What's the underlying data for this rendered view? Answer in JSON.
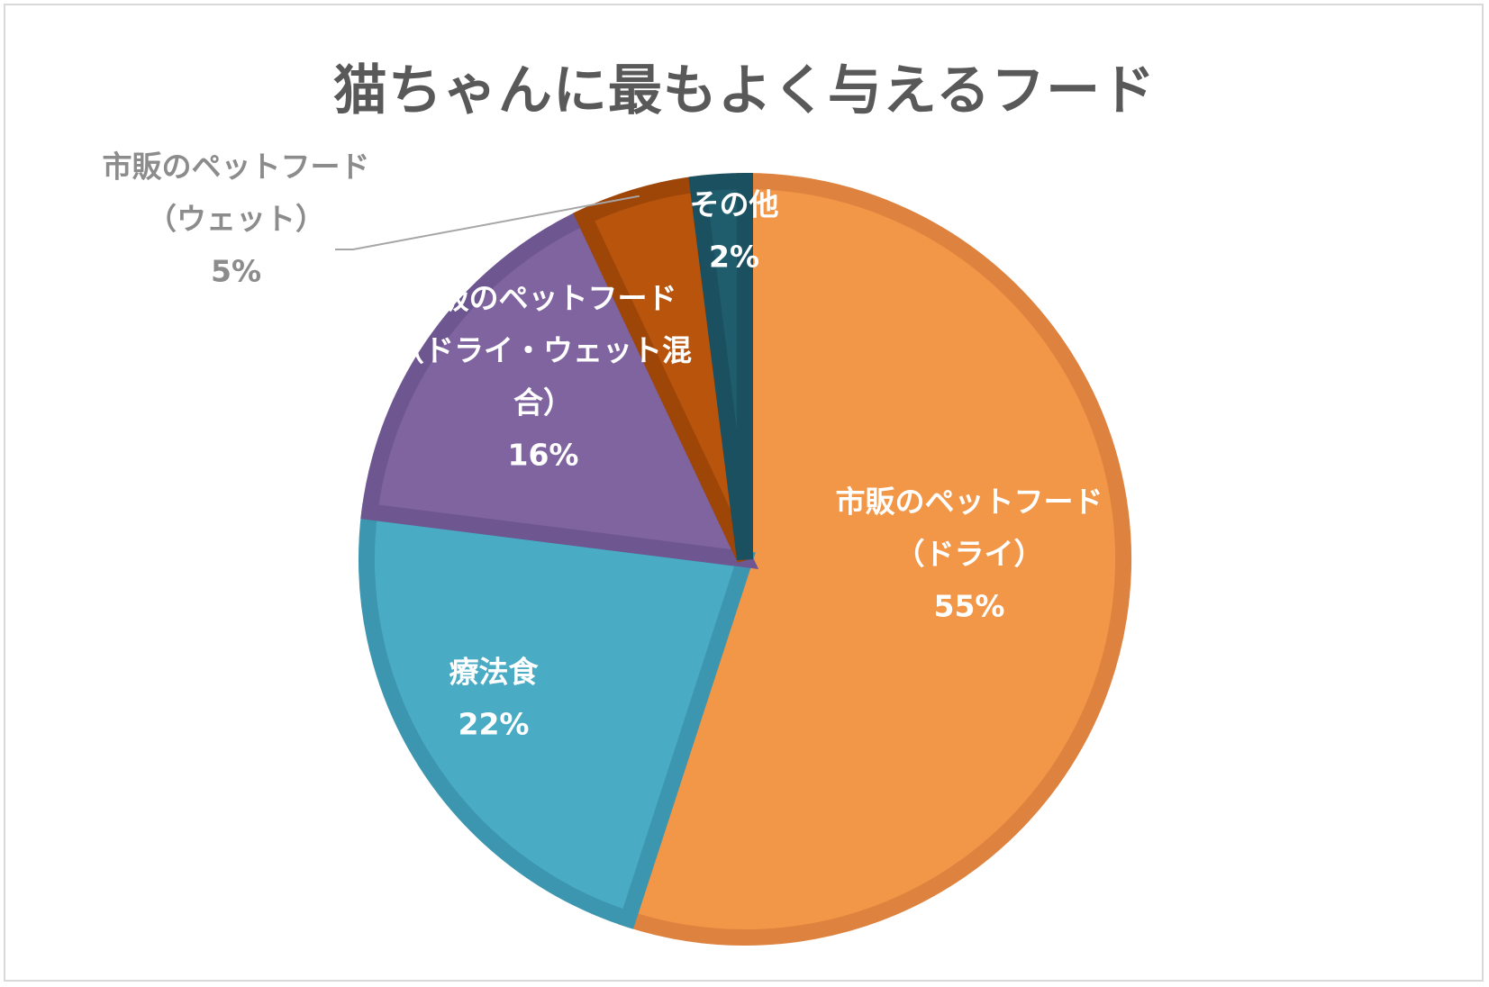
{
  "chart_data": {
    "type": "pie",
    "title": "猫ちゃんに最もよく与えるフード",
    "slices": [
      {
        "name": "市販のペットフード（ドライ）",
        "label_lines": [
          "市販のペットフード",
          "（ドライ）"
        ],
        "value": 55,
        "value_label": "55%",
        "color": "#f29647",
        "border_color": "#de8240",
        "label_color": "#ffffff"
      },
      {
        "name": "療法食",
        "label_lines": [
          "療法食"
        ],
        "value": 22,
        "value_label": "22%",
        "color": "#4aabc4",
        "border_color": "#3d96b0",
        "label_color": "#ffffff"
      },
      {
        "name": "市販のペットフード（ドライ・ウェット混合）",
        "label_lines": [
          "市販のペットフード",
          "（ドライ・ウェット混",
          "合）"
        ],
        "value": 16,
        "value_label": "16%",
        "color": "#7f64a0",
        "border_color": "#6e5690",
        "label_color": "#ffffff"
      },
      {
        "name": "市販のペットフード（ウェット）",
        "label_lines": [
          "市販のペットフード",
          "（ウェット）"
        ],
        "value": 5,
        "value_label": "5%",
        "color": "#b8540c",
        "border_color": "#9e4508",
        "label_color": "#8c8c8c"
      },
      {
        "name": "その他",
        "label_lines": [
          "その他"
        ],
        "value": 2,
        "value_label": "2%",
        "color": "#1f5d6d",
        "border_color": "#1b5060",
        "label_color": "#ffffff"
      }
    ],
    "start_angle_deg": 0,
    "direction": "clockwise",
    "legend": "none",
    "data_labels": "category name and percentage"
  },
  "colors": {
    "title": "#595959",
    "frame_border": "#d9d9d9",
    "background": "#ffffff",
    "leader_line": "#a6a6a6"
  }
}
